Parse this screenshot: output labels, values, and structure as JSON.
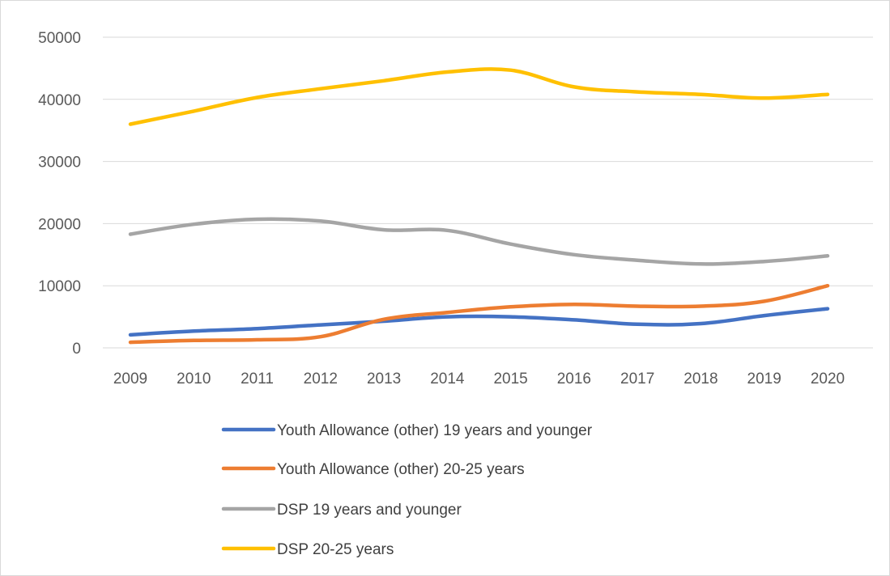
{
  "chart_data": {
    "type": "line",
    "categories": [
      "2009",
      "2010",
      "2011",
      "2012",
      "2013",
      "2014",
      "2015",
      "2016",
      "2017",
      "2018",
      "2019",
      "2020"
    ],
    "ylim": [
      0,
      50000
    ],
    "yticks": [
      0,
      10000,
      20000,
      30000,
      40000,
      50000
    ],
    "ytick_labels": [
      "0",
      "10000",
      "20000",
      "30000",
      "40000",
      "50000"
    ],
    "grid": "horizontal",
    "legend_position": "bottom",
    "series": [
      {
        "name": "Youth Allowance (other) 19 years and younger",
        "color": "#4472c4",
        "values": [
          2100,
          2700,
          3100,
          3700,
          4300,
          5000,
          5000,
          4500,
          3800,
          3900,
          5200,
          6300
        ]
      },
      {
        "name": "Youth Allowance (other) 20-25 years",
        "color": "#ed7d31",
        "values": [
          900,
          1200,
          1300,
          1800,
          4600,
          5700,
          6600,
          7000,
          6700,
          6700,
          7500,
          10000
        ]
      },
      {
        "name": "DSP 19 years and younger",
        "color": "#a5a5a5",
        "values": [
          18300,
          19900,
          20700,
          20400,
          19000,
          18900,
          16700,
          15000,
          14100,
          13500,
          13900,
          14800
        ]
      },
      {
        "name": "DSP 20-25 years",
        "color": "#ffc000",
        "values": [
          36000,
          38100,
          40300,
          41700,
          43000,
          44400,
          44700,
          42000,
          41200,
          40800,
          40200,
          40800
        ]
      }
    ]
  }
}
